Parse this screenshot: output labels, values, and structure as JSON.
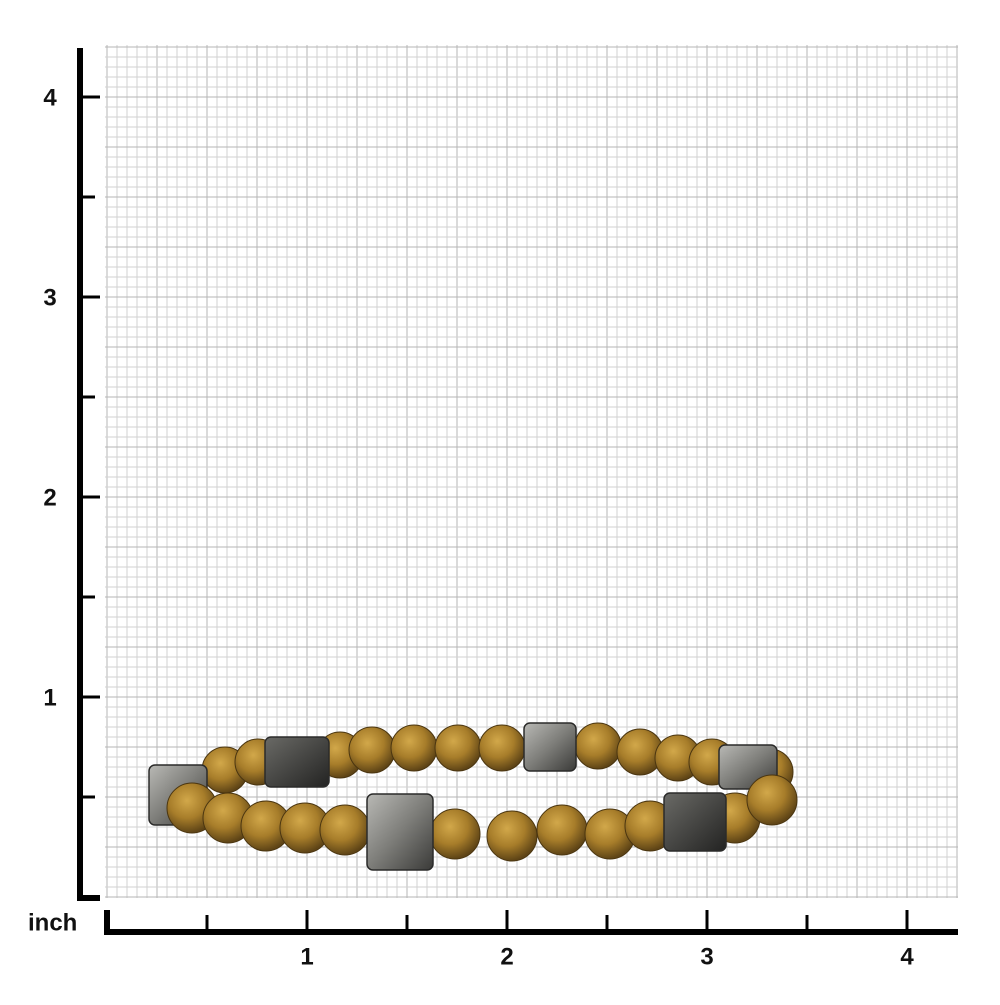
{
  "ruler": {
    "unit": "inch",
    "y_labels": [
      4,
      3,
      2,
      1
    ],
    "x_labels": [
      1,
      2,
      3,
      4
    ]
  }
}
